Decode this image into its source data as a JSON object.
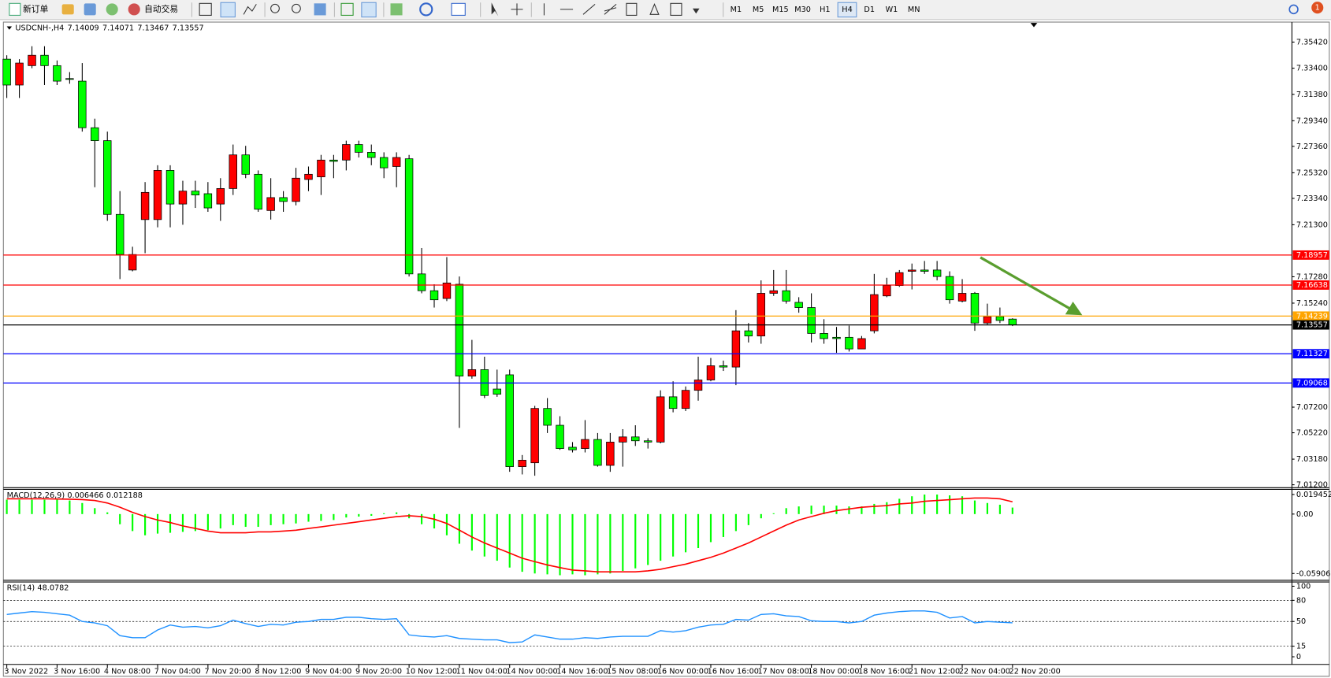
{
  "toolbar": {
    "new_order": "新订单",
    "auto_trading": "自动交易",
    "timeframes": [
      "M1",
      "M5",
      "M15",
      "M30",
      "H1",
      "H4",
      "D1",
      "W1",
      "MN"
    ],
    "active_timeframe": "H4",
    "badge": "1"
  },
  "chart_data": {
    "type": "candlestick",
    "title": "USDCNH-,H4",
    "up_color": "#ff0000",
    "down_color": "#00ff00",
    "bid_color": "#000000",
    "ylim": [
      7.0104,
      7.369
    ],
    "yticks": [
      {
        "value": 7.3542,
        "label": "7.35420"
      },
      {
        "value": 7.334,
        "label": "7.33400"
      },
      {
        "value": 7.3138,
        "label": "7.31380"
      },
      {
        "value": 7.2934,
        "label": "7.29340"
      },
      {
        "value": 7.2736,
        "label": "7.27360"
      },
      {
        "value": 7.2532,
        "label": "7.25320"
      },
      {
        "value": 7.2334,
        "label": "7.23340"
      },
      {
        "value": 7.213,
        "label": "7.21300"
      },
      {
        "value": 7.1728,
        "label": "7.17280"
      },
      {
        "value": 7.1524,
        "label": "7.15240"
      },
      {
        "value": 7.072,
        "label": "7.07200"
      },
      {
        "value": 7.0522,
        "label": "7.05220"
      },
      {
        "value": 7.0318,
        "label": "7.03180"
      },
      {
        "value": 7.012,
        "label": "7.01200"
      }
    ],
    "levels": [
      {
        "value": 7.18957,
        "color": "#ff0000"
      },
      {
        "value": 7.16638,
        "color": "#ff0000"
      },
      {
        "value": 7.14239,
        "color": "#ffa500"
      },
      {
        "value": 7.11327,
        "color": "#0000ff"
      },
      {
        "value": 7.09068,
        "color": "#0000ff"
      }
    ],
    "categories": [
      "3 Nov 2022",
      null,
      null,
      null,
      "3 Nov 16:00",
      null,
      null,
      null,
      "4 Nov 08:00",
      null,
      null,
      null,
      "7 Nov 04:00",
      null,
      null,
      null,
      "7 Nov 20:00",
      null,
      null,
      null,
      "8 Nov 12:00",
      null,
      null,
      null,
      "9 Nov 04:00",
      null,
      null,
      null,
      "9 Nov 20:00",
      null,
      null,
      null,
      "10 Nov 12:00",
      null,
      null,
      null,
      "11 Nov 04:00",
      null,
      null,
      null,
      "14 Nov 00:00",
      null,
      null,
      null,
      "14 Nov 16:00",
      null,
      null,
      null,
      "15 Nov 08:00",
      null,
      null,
      null,
      "16 Nov 00:00",
      null,
      null,
      null,
      "16 Nov 16:00",
      null,
      null,
      null,
      "17 Nov 08:00",
      null,
      null,
      null,
      "18 Nov 00:00",
      null,
      null,
      null,
      "18 Nov 16:00",
      null,
      null,
      null,
      "21 Nov 12:00",
      null,
      null,
      null,
      "22 Nov 04:00",
      null,
      null,
      null,
      "22 Nov 20:00"
    ],
    "candles": [
      [
        7.341,
        7.344,
        7.311,
        7.321
      ],
      [
        7.321,
        7.341,
        7.311,
        7.338
      ],
      [
        7.336,
        7.351,
        7.334,
        7.344
      ],
      [
        7.344,
        7.351,
        7.321,
        7.336
      ],
      [
        7.336,
        7.34,
        7.321,
        7.324
      ],
      [
        7.326,
        7.331,
        7.322,
        7.326
      ],
      [
        7.324,
        7.338,
        7.285,
        7.288
      ],
      [
        7.288,
        7.295,
        7.242,
        7.278
      ],
      [
        7.278,
        7.285,
        7.216,
        7.221
      ],
      [
        7.221,
        7.239,
        7.171,
        7.19
      ],
      [
        7.178,
        7.196,
        7.177,
        7.19
      ],
      [
        7.217,
        7.246,
        7.191,
        7.238
      ],
      [
        7.217,
        7.259,
        7.211,
        7.255
      ],
      [
        7.255,
        7.259,
        7.211,
        7.229
      ],
      [
        7.229,
        7.247,
        7.213,
        7.239
      ],
      [
        7.239,
        7.247,
        7.226,
        7.236
      ],
      [
        7.237,
        7.246,
        7.223,
        7.226
      ],
      [
        7.229,
        7.249,
        7.216,
        7.241
      ],
      [
        7.241,
        7.275,
        7.236,
        7.267
      ],
      [
        7.267,
        7.274,
        7.249,
        7.252
      ],
      [
        7.252,
        7.255,
        7.223,
        7.225
      ],
      [
        7.224,
        7.249,
        7.217,
        7.234
      ],
      [
        7.234,
        7.239,
        7.223,
        7.231
      ],
      [
        7.231,
        7.257,
        7.228,
        7.249
      ],
      [
        7.248,
        7.258,
        7.239,
        7.252
      ],
      [
        7.25,
        7.267,
        7.236,
        7.263
      ],
      [
        7.263,
        7.267,
        7.249,
        7.262
      ],
      [
        7.263,
        7.278,
        7.255,
        7.275
      ],
      [
        7.275,
        7.278,
        7.265,
        7.269
      ],
      [
        7.269,
        7.275,
        7.259,
        7.265
      ],
      [
        7.265,
        7.269,
        7.249,
        7.257
      ],
      [
        7.258,
        7.269,
        7.242,
        7.265
      ],
      [
        7.264,
        7.267,
        7.173,
        7.175
      ],
      [
        7.175,
        7.195,
        7.16,
        7.162
      ],
      [
        7.162,
        7.167,
        7.149,
        7.155
      ],
      [
        7.156,
        7.188,
        7.154,
        7.168
      ],
      [
        7.167,
        7.173,
        7.056,
        7.096
      ],
      [
        7.096,
        7.124,
        7.094,
        7.101
      ],
      [
        7.101,
        7.111,
        7.079,
        7.081
      ],
      [
        7.086,
        7.101,
        7.08,
        7.082
      ],
      [
        7.097,
        7.101,
        7.022,
        7.026
      ],
      [
        7.026,
        7.035,
        7.02,
        7.031
      ],
      [
        7.029,
        7.073,
        7.019,
        7.071
      ],
      [
        7.071,
        7.079,
        7.052,
        7.058
      ],
      [
        7.058,
        7.065,
        7.039,
        7.04
      ],
      [
        7.041,
        7.045,
        7.037,
        7.039
      ],
      [
        7.04,
        7.062,
        7.037,
        7.047
      ],
      [
        7.047,
        7.052,
        7.026,
        7.027
      ],
      [
        7.027,
        7.052,
        7.022,
        7.045
      ],
      [
        7.045,
        7.055,
        7.026,
        7.049
      ],
      [
        7.049,
        7.058,
        7.042,
        7.046
      ],
      [
        7.046,
        7.048,
        7.04,
        7.045
      ],
      [
        7.045,
        7.085,
        7.044,
        7.08
      ],
      [
        7.08,
        7.092,
        7.068,
        7.071
      ],
      [
        7.071,
        7.088,
        7.069,
        7.085
      ],
      [
        7.085,
        7.111,
        7.077,
        7.093
      ],
      [
        7.093,
        7.11,
        7.092,
        7.104
      ],
      [
        7.104,
        7.108,
        7.1,
        7.103
      ],
      [
        7.103,
        7.147,
        7.089,
        7.131
      ],
      [
        7.131,
        7.137,
        7.122,
        7.127
      ],
      [
        7.127,
        7.17,
        7.121,
        7.16
      ],
      [
        7.16,
        7.178,
        7.158,
        7.162
      ],
      [
        7.162,
        7.178,
        7.152,
        7.154
      ],
      [
        7.153,
        7.157,
        7.145,
        7.149
      ],
      [
        7.149,
        7.16,
        7.122,
        7.129
      ],
      [
        7.129,
        7.14,
        7.121,
        7.125
      ],
      [
        7.126,
        7.134,
        7.114,
        7.125
      ],
      [
        7.126,
        7.135,
        7.115,
        7.117
      ],
      [
        7.117,
        7.127,
        7.117,
        7.125
      ],
      [
        7.131,
        7.175,
        7.129,
        7.159
      ],
      [
        7.158,
        7.172,
        7.157,
        7.166
      ],
      [
        7.166,
        7.178,
        7.165,
        7.176
      ],
      [
        7.177,
        7.183,
        7.163,
        7.178
      ],
      [
        7.178,
        7.185,
        7.175,
        7.177
      ],
      [
        7.178,
        7.185,
        7.17,
        7.173
      ],
      [
        7.173,
        7.177,
        7.152,
        7.155
      ],
      [
        7.154,
        7.171,
        7.153,
        7.16
      ],
      [
        7.16,
        7.161,
        7.131,
        7.137
      ],
      [
        7.137,
        7.152,
        7.136,
        7.142
      ],
      [
        7.142,
        7.149,
        7.137,
        7.139
      ],
      [
        7.14009,
        7.14071,
        7.13467,
        7.13557
      ]
    ],
    "macd": {
      "title": "MACD(12,26,9)",
      "color": "#00ff00",
      "signal_color": "#ff0000",
      "ylim": [
        -0.065,
        0.0237
      ],
      "yticks": [
        0.019452,
        {
          "value": 0,
          "label": "0.00"
        },
        -0.059068
      ],
      "values": [
        0.0143,
        0.0143,
        0.0143,
        0.0143,
        0.0143,
        0.0135,
        0.011,
        0.0059,
        0.0017,
        -0.0101,
        -0.0169,
        -0.0211,
        -0.0194,
        -0.0186,
        -0.0177,
        -0.0169,
        -0.016,
        -0.0143,
        -0.011,
        -0.0127,
        -0.0127,
        -0.011,
        -0.0101,
        -0.0093,
        -0.0076,
        -0.0068,
        -0.0059,
        -0.0034,
        -0.0025,
        -0.0017,
        0.0008,
        0.0017,
        -0.0042,
        -0.0101,
        -0.0143,
        -0.0211,
        -0.0295,
        -0.0363,
        -0.0422,
        -0.0464,
        -0.0532,
        -0.0574,
        -0.0591,
        -0.0599,
        -0.0608,
        -0.0599,
        -0.0608,
        -0.0599,
        -0.0591,
        -0.0565,
        -0.054,
        -0.0506,
        -0.0464,
        -0.0422,
        -0.038,
        -0.0338,
        -0.0279,
        -0.0228,
        -0.0169,
        -0.011,
        -0.0042,
        0.0008,
        0.0059,
        0.0076,
        0.0084,
        0.0084,
        0.0084,
        0.0076,
        0.0076,
        0.0101,
        0.0118,
        0.0152,
        0.0177,
        0.0194,
        0.0194,
        0.0186,
        0.0177,
        0.0135,
        0.011,
        0.0093,
        0.006466
      ],
      "signal": [
        0.0152,
        0.0152,
        0.0152,
        0.0152,
        0.015,
        0.0148,
        0.0144,
        0.0135,
        0.011,
        0.0068,
        0.0017,
        -0.0025,
        -0.0059,
        -0.0084,
        -0.0118,
        -0.0143,
        -0.0169,
        -0.0186,
        -0.0186,
        -0.0186,
        -0.0177,
        -0.0177,
        -0.0169,
        -0.016,
        -0.0143,
        -0.0127,
        -0.011,
        -0.0093,
        -0.0076,
        -0.0059,
        -0.0042,
        -0.0025,
        -0.0017,
        -0.0025,
        -0.0051,
        -0.0093,
        -0.016,
        -0.0228,
        -0.0287,
        -0.0338,
        -0.0388,
        -0.0439,
        -0.0473,
        -0.0506,
        -0.0532,
        -0.0557,
        -0.0565,
        -0.0574,
        -0.0574,
        -0.0574,
        -0.0574,
        -0.0565,
        -0.0549,
        -0.0523,
        -0.0498,
        -0.0464,
        -0.043,
        -0.0388,
        -0.0338,
        -0.0287,
        -0.0228,
        -0.0169,
        -0.011,
        -0.0059,
        -0.0025,
        0.0008,
        0.0034,
        0.0051,
        0.0068,
        0.0076,
        0.0084,
        0.0101,
        0.011,
        0.0127,
        0.0135,
        0.0143,
        0.0152,
        0.016,
        0.016,
        0.0152,
        0.012188
      ]
    },
    "rsi": {
      "title": "RSI(14)",
      "color": "#1e90ff",
      "ylim": [
        0,
        100
      ],
      "yticks": [
        100,
        80,
        50,
        15,
        0
      ],
      "values": [
        60,
        62,
        64,
        63,
        61,
        59,
        50,
        48,
        44,
        30,
        27,
        27,
        38,
        45,
        42,
        43,
        41,
        44,
        52,
        47,
        43,
        46,
        45,
        49,
        50,
        53,
        53,
        56,
        56,
        54,
        53,
        54,
        31,
        29,
        28,
        30,
        26,
        25,
        24,
        24,
        20,
        21,
        31,
        28,
        25,
        25,
        27,
        26,
        28,
        29,
        29,
        29,
        37,
        35,
        37,
        42,
        45,
        46,
        53,
        52,
        60,
        61,
        58,
        57,
        51,
        50,
        50,
        48,
        50,
        59,
        62,
        64,
        65,
        65,
        63,
        55,
        57,
        48,
        50,
        49,
        48.0782
      ]
    }
  }
}
